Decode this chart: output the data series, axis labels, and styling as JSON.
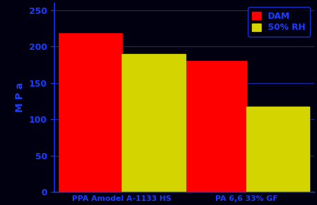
{
  "categories": [
    "PPA Amodel A-1133 HS",
    "PA 6,6 33% GF"
  ],
  "dam_values": [
    218,
    180
  ],
  "rh_values": [
    190,
    117
  ],
  "bar_colors": {
    "dam": "#ff0000",
    "rh": "#d4d400"
  },
  "legend_labels": [
    "DAM",
    "50% RH"
  ],
  "ylabel": "M P a",
  "ylim": [
    0,
    260
  ],
  "yticks": [
    0,
    50,
    100,
    150,
    200,
    250
  ],
  "background_color": "#000010",
  "plot_bg_color": "#000010",
  "axis_color": "#1a3fff",
  "tick_color": "#1a3fff",
  "label_color": "#1a3fff",
  "grid_color": "#1a3fff",
  "bar_width": 0.28,
  "ylabel_fontsize": 10,
  "tick_fontsize": 9,
  "xtick_fontsize": 8,
  "legend_fontsize": 9,
  "figsize": [
    4.58,
    2.96
  ],
  "dpi": 100
}
